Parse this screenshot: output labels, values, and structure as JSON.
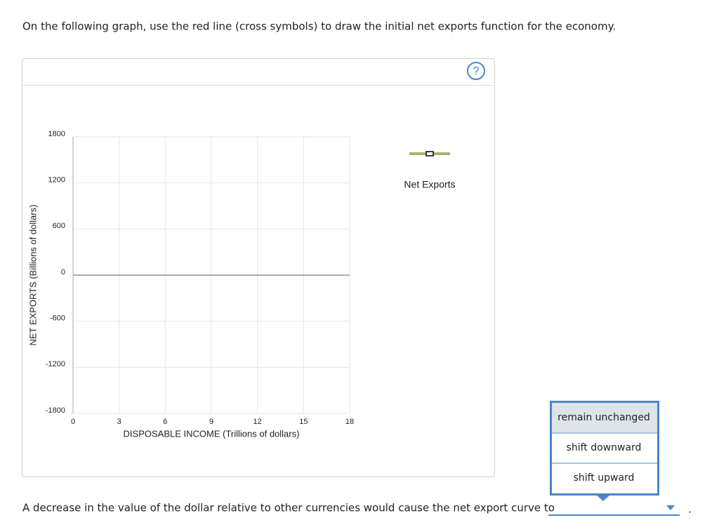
{
  "instruction": "On the following graph, use the red line (cross symbols) to draw the initial net exports function for the economy.",
  "help": "?",
  "chart_data": {
    "type": "line",
    "x_label": "DISPOSABLE INCOME (Trillions of dollars)",
    "y_label": "NET EXPORTS (Billions of dollars)",
    "xlim": [
      0,
      18
    ],
    "xticks": [
      0,
      3,
      6,
      9,
      12,
      15,
      18
    ],
    "ylim": [
      -1800,
      1800
    ],
    "yticks": [
      -1800,
      -1200,
      -600,
      0,
      600,
      1200,
      1800
    ],
    "grid": true,
    "legend_label": "Net Exports",
    "legend_color": "#a8b26a"
  },
  "question": "A decrease in the value of the dollar relative to other currencies would cause the net export curve to",
  "dropdown": {
    "options": [
      "remain unchanged",
      "shift downward",
      "shift upward"
    ]
  },
  "period": "."
}
